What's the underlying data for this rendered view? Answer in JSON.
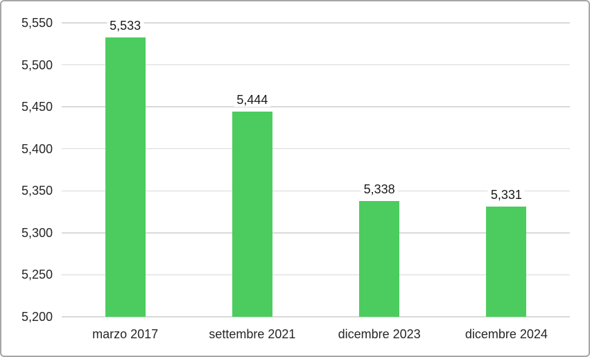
{
  "chart_data": {
    "type": "bar",
    "title": "",
    "xlabel": "",
    "ylabel": "",
    "categories": [
      "marzo 2017",
      "settembre 2021",
      "dicembre 2023",
      "dicembre 2024"
    ],
    "values": [
      5533,
      5444,
      5338,
      5331
    ],
    "data_labels": [
      "5,533",
      "5,444",
      "5,338",
      "5,331"
    ],
    "y_ticks": [
      {
        "value": 5550,
        "label": "5,550"
      },
      {
        "value": 5500,
        "label": "5,500"
      },
      {
        "value": 5450,
        "label": "5,450"
      },
      {
        "value": 5400,
        "label": "5,400"
      },
      {
        "value": 5350,
        "label": "5,350"
      },
      {
        "value": 5300,
        "label": "5,300"
      },
      {
        "value": 5250,
        "label": "5,250"
      },
      {
        "value": 5200,
        "label": "5,200"
      }
    ],
    "ylim": [
      5200,
      5550
    ],
    "grid": true,
    "legend_position": "none",
    "colors": {
      "bar": "#4ccc5e",
      "gridline": "#d9d9d9",
      "frame_border": "#a6a6a6",
      "label_text": "#262626"
    }
  }
}
